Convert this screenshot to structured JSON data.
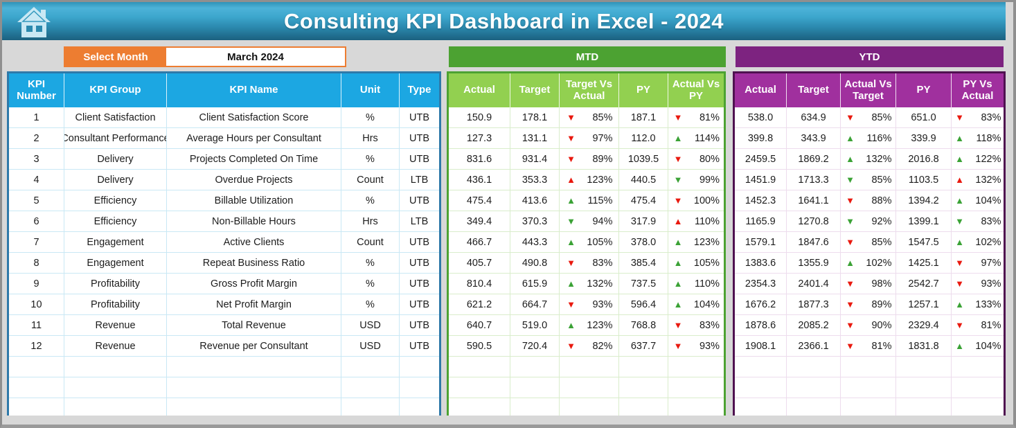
{
  "header": {
    "title": "Consulting KPI Dashboard in Excel - 2024"
  },
  "controls": {
    "select_month_label": "Select Month",
    "selected_month": "March 2024"
  },
  "sections": {
    "mtd_label": "MTD",
    "ytd_label": "YTD"
  },
  "kpi_table": {
    "headers": [
      "KPI Number",
      "KPI Group",
      "KPI Name",
      "Unit",
      "Type"
    ]
  },
  "mtd_table": {
    "headers": [
      "Actual",
      "Target",
      "Target Vs Actual",
      "PY",
      "Actual Vs PY"
    ]
  },
  "ytd_table": {
    "headers": [
      "Actual",
      "Target",
      "Actual Vs Target",
      "PY",
      "PY Vs Actual"
    ]
  },
  "empty_row_count": 3,
  "colors": {
    "header_blue": "#1CA7E2",
    "accent_orange": "#ED7D31",
    "mtd_green_dark": "#4CA232",
    "mtd_green_light": "#92D050",
    "ytd_purple_dark": "#7D2380",
    "ytd_purple_header": "#A0309E",
    "arrow_red": "#E9190F",
    "arrow_green": "#3BA236"
  },
  "rows": [
    {
      "number": "1",
      "group": "Client Satisfaction",
      "name": "Client Satisfaction Score",
      "unit": "%",
      "type": "UTB",
      "mtd": {
        "actual": "150.9",
        "target": "178.1",
        "tva": [
          "down",
          "red",
          "85%"
        ],
        "py": "187.1",
        "avp": [
          "down",
          "red",
          "81%"
        ]
      },
      "ytd": {
        "actual": "538.0",
        "target": "634.9",
        "avt": [
          "down",
          "red",
          "85%"
        ],
        "py": "651.0",
        "pva": [
          "down",
          "red",
          "83%"
        ]
      }
    },
    {
      "number": "2",
      "group": "Consultant Performance",
      "name": "Average Hours per Consultant",
      "unit": "Hrs",
      "type": "UTB",
      "mtd": {
        "actual": "127.3",
        "target": "131.1",
        "tva": [
          "down",
          "red",
          "97%"
        ],
        "py": "112.0",
        "avp": [
          "up",
          "green",
          "114%"
        ]
      },
      "ytd": {
        "actual": "399.8",
        "target": "343.9",
        "avt": [
          "up",
          "green",
          "116%"
        ],
        "py": "339.9",
        "pva": [
          "up",
          "green",
          "118%"
        ]
      }
    },
    {
      "number": "3",
      "group": "Delivery",
      "name": "Projects Completed On Time",
      "unit": "%",
      "type": "UTB",
      "mtd": {
        "actual": "831.6",
        "target": "931.4",
        "tva": [
          "down",
          "red",
          "89%"
        ],
        "py": "1039.5",
        "avp": [
          "down",
          "red",
          "80%"
        ]
      },
      "ytd": {
        "actual": "2459.5",
        "target": "1869.2",
        "avt": [
          "up",
          "green",
          "132%"
        ],
        "py": "2016.8",
        "pva": [
          "up",
          "green",
          "122%"
        ]
      }
    },
    {
      "number": "4",
      "group": "Delivery",
      "name": "Overdue Projects",
      "unit": "Count",
      "type": "LTB",
      "mtd": {
        "actual": "436.1",
        "target": "353.3",
        "tva": [
          "up",
          "red",
          "123%"
        ],
        "py": "440.5",
        "avp": [
          "down",
          "green",
          "99%"
        ]
      },
      "ytd": {
        "actual": "1451.9",
        "target": "1713.3",
        "avt": [
          "down",
          "green",
          "85%"
        ],
        "py": "1103.5",
        "pva": [
          "up",
          "red",
          "132%"
        ]
      }
    },
    {
      "number": "5",
      "group": "Efficiency",
      "name": "Billable Utilization",
      "unit": "%",
      "type": "UTB",
      "mtd": {
        "actual": "475.4",
        "target": "413.6",
        "tva": [
          "up",
          "green",
          "115%"
        ],
        "py": "475.4",
        "avp": [
          "down",
          "red",
          "100%"
        ]
      },
      "ytd": {
        "actual": "1452.3",
        "target": "1641.1",
        "avt": [
          "down",
          "red",
          "88%"
        ],
        "py": "1394.2",
        "pva": [
          "up",
          "green",
          "104%"
        ]
      }
    },
    {
      "number": "6",
      "group": "Efficiency",
      "name": "Non-Billable Hours",
      "unit": "Hrs",
      "type": "LTB",
      "mtd": {
        "actual": "349.4",
        "target": "370.3",
        "tva": [
          "down",
          "green",
          "94%"
        ],
        "py": "317.9",
        "avp": [
          "up",
          "red",
          "110%"
        ]
      },
      "ytd": {
        "actual": "1165.9",
        "target": "1270.8",
        "avt": [
          "down",
          "green",
          "92%"
        ],
        "py": "1399.1",
        "pva": [
          "down",
          "green",
          "83%"
        ]
      }
    },
    {
      "number": "7",
      "group": "Engagement",
      "name": "Active Clients",
      "unit": "Count",
      "type": "UTB",
      "mtd": {
        "actual": "466.7",
        "target": "443.3",
        "tva": [
          "up",
          "green",
          "105%"
        ],
        "py": "378.0",
        "avp": [
          "up",
          "green",
          "123%"
        ]
      },
      "ytd": {
        "actual": "1579.1",
        "target": "1847.6",
        "avt": [
          "down",
          "red",
          "85%"
        ],
        "py": "1547.5",
        "pva": [
          "up",
          "green",
          "102%"
        ]
      }
    },
    {
      "number": "8",
      "group": "Engagement",
      "name": "Repeat Business Ratio",
      "unit": "%",
      "type": "UTB",
      "mtd": {
        "actual": "405.7",
        "target": "490.8",
        "tva": [
          "down",
          "red",
          "83%"
        ],
        "py": "385.4",
        "avp": [
          "up",
          "green",
          "105%"
        ]
      },
      "ytd": {
        "actual": "1383.6",
        "target": "1355.9",
        "avt": [
          "up",
          "green",
          "102%"
        ],
        "py": "1425.1",
        "pva": [
          "down",
          "red",
          "97%"
        ]
      }
    },
    {
      "number": "9",
      "group": "Profitability",
      "name": "Gross Profit Margin",
      "unit": "%",
      "type": "UTB",
      "mtd": {
        "actual": "810.4",
        "target": "615.9",
        "tva": [
          "up",
          "green",
          "132%"
        ],
        "py": "737.5",
        "avp": [
          "up",
          "green",
          "110%"
        ]
      },
      "ytd": {
        "actual": "2354.3",
        "target": "2401.4",
        "avt": [
          "down",
          "red",
          "98%"
        ],
        "py": "2542.7",
        "pva": [
          "down",
          "red",
          "93%"
        ]
      }
    },
    {
      "number": "10",
      "group": "Profitability",
      "name": "Net Profit Margin",
      "unit": "%",
      "type": "UTB",
      "mtd": {
        "actual": "621.2",
        "target": "664.7",
        "tva": [
          "down",
          "red",
          "93%"
        ],
        "py": "596.4",
        "avp": [
          "up",
          "green",
          "104%"
        ]
      },
      "ytd": {
        "actual": "1676.2",
        "target": "1877.3",
        "avt": [
          "down",
          "red",
          "89%"
        ],
        "py": "1257.1",
        "pva": [
          "up",
          "green",
          "133%"
        ]
      }
    },
    {
      "number": "11",
      "group": "Revenue",
      "name": "Total Revenue",
      "unit": "USD",
      "type": "UTB",
      "mtd": {
        "actual": "640.7",
        "target": "519.0",
        "tva": [
          "up",
          "green",
          "123%"
        ],
        "py": "768.8",
        "avp": [
          "down",
          "red",
          "83%"
        ]
      },
      "ytd": {
        "actual": "1878.6",
        "target": "2085.2",
        "avt": [
          "down",
          "red",
          "90%"
        ],
        "py": "2329.4",
        "pva": [
          "down",
          "red",
          "81%"
        ]
      }
    },
    {
      "number": "12",
      "group": "Revenue",
      "name": "Revenue per Consultant",
      "unit": "USD",
      "type": "UTB",
      "mtd": {
        "actual": "590.5",
        "target": "720.4",
        "tva": [
          "down",
          "red",
          "82%"
        ],
        "py": "637.7",
        "avp": [
          "down",
          "red",
          "93%"
        ]
      },
      "ytd": {
        "actual": "1908.1",
        "target": "2366.1",
        "avt": [
          "down",
          "red",
          "81%"
        ],
        "py": "1831.8",
        "pva": [
          "up",
          "green",
          "104%"
        ]
      }
    }
  ]
}
